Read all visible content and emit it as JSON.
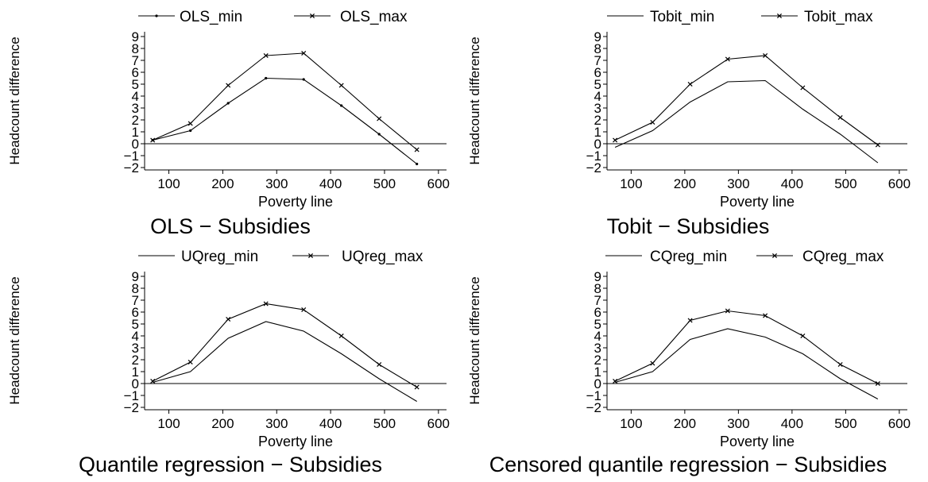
{
  "chart_data": [
    {
      "type": "line",
      "title": "OLS − Subsidies",
      "xlabel": "Poverty line",
      "ylabel": "Headcount difference",
      "x": [
        70,
        140,
        210,
        280,
        350,
        420,
        490,
        560
      ],
      "xticks": [
        "100",
        "200",
        "300",
        "400",
        "500",
        "600"
      ],
      "xtick_values": [
        100,
        200,
        300,
        400,
        500,
        600
      ],
      "yticks": [
        "−2",
        "−1",
        "0",
        "1",
        "2",
        "3",
        "4",
        "5",
        "6",
        "7",
        "8",
        "9"
      ],
      "ytick_values": [
        -2,
        -1,
        0,
        1,
        2,
        3,
        4,
        5,
        6,
        7,
        8,
        9
      ],
      "xlim": [
        55,
        615
      ],
      "ylim": [
        -2.2,
        9.4
      ],
      "reference_line_y": 0,
      "legend": "top",
      "series": [
        {
          "name": "OLS_min",
          "marker": "dot",
          "values": [
            0.3,
            1.1,
            3.4,
            5.5,
            5.4,
            3.2,
            0.8,
            -1.7
          ]
        },
        {
          "name": "OLS_max",
          "marker": "x",
          "values": [
            0.3,
            1.7,
            4.9,
            7.4,
            7.6,
            4.9,
            2.1,
            -0.5
          ]
        }
      ]
    },
    {
      "type": "line",
      "title": "Tobit − Subsidies",
      "xlabel": "Poverty line",
      "ylabel": "Headcount difference",
      "x": [
        70,
        140,
        210,
        280,
        350,
        420,
        490,
        560
      ],
      "xticks": [
        "100",
        "200",
        "300",
        "400",
        "500",
        "600"
      ],
      "xtick_values": [
        100,
        200,
        300,
        400,
        500,
        600
      ],
      "yticks": [
        "−2",
        "−1",
        "0",
        "1",
        "2",
        "3",
        "4",
        "5",
        "6",
        "7",
        "8",
        "9"
      ],
      "ytick_values": [
        -2,
        -1,
        0,
        1,
        2,
        3,
        4,
        5,
        6,
        7,
        8,
        9
      ],
      "xlim": [
        55,
        615
      ],
      "ylim": [
        -2.2,
        9.4
      ],
      "reference_line_y": 0,
      "legend": "top",
      "series": [
        {
          "name": "Tobit_min",
          "marker": "none",
          "values": [
            -0.3,
            1.1,
            3.5,
            5.2,
            5.3,
            2.9,
            0.8,
            -1.6
          ]
        },
        {
          "name": "Tobit_max",
          "marker": "x",
          "values": [
            0.3,
            1.8,
            5.0,
            7.1,
            7.4,
            4.7,
            2.2,
            -0.1
          ]
        }
      ]
    },
    {
      "type": "line",
      "title": "Quantile regression − Subsidies",
      "xlabel": "Poverty line",
      "ylabel": "Headcount difference",
      "x": [
        70,
        140,
        210,
        280,
        350,
        420,
        490,
        560
      ],
      "xticks": [
        "100",
        "200",
        "300",
        "400",
        "500",
        "600"
      ],
      "xtick_values": [
        100,
        200,
        300,
        400,
        500,
        600
      ],
      "yticks": [
        "−2",
        "−1",
        "0",
        "1",
        "2",
        "3",
        "4",
        "5",
        "6",
        "7",
        "8",
        "9"
      ],
      "ytick_values": [
        -2,
        -1,
        0,
        1,
        2,
        3,
        4,
        5,
        6,
        7,
        8,
        9
      ],
      "xlim": [
        55,
        615
      ],
      "ylim": [
        -2.2,
        9.4
      ],
      "reference_line_y": 0,
      "legend": "top",
      "series": [
        {
          "name": "UQreg_min",
          "marker": "none",
          "values": [
            0.1,
            1.0,
            3.8,
            5.2,
            4.4,
            2.5,
            0.4,
            -1.5
          ]
        },
        {
          "name": "UQreg_max",
          "marker": "x",
          "values": [
            0.2,
            1.8,
            5.4,
            6.7,
            6.2,
            4.0,
            1.6,
            -0.3
          ]
        }
      ]
    },
    {
      "type": "line",
      "title": "Censored quantile regression − Subsidies",
      "xlabel": "Poverty line",
      "ylabel": "Headcount difference",
      "x": [
        70,
        140,
        210,
        280,
        350,
        420,
        490,
        560
      ],
      "xticks": [
        "100",
        "200",
        "300",
        "400",
        "500",
        "600"
      ],
      "xtick_values": [
        100,
        200,
        300,
        400,
        500,
        600
      ],
      "yticks": [
        "−2",
        "−1",
        "0",
        "1",
        "2",
        "3",
        "4",
        "5",
        "6",
        "7",
        "8",
        "9"
      ],
      "ytick_values": [
        -2,
        -1,
        0,
        1,
        2,
        3,
        4,
        5,
        6,
        7,
        8,
        9
      ],
      "xlim": [
        55,
        615
      ],
      "ylim": [
        -2.2,
        9.4
      ],
      "reference_line_y": 0,
      "legend": "top",
      "series": [
        {
          "name": "CQreg_min",
          "marker": "none",
          "values": [
            0.1,
            1.0,
            3.7,
            4.6,
            3.9,
            2.5,
            0.4,
            -1.3
          ]
        },
        {
          "name": "CQreg_max",
          "marker": "x",
          "values": [
            0.2,
            1.7,
            5.3,
            6.1,
            5.7,
            4.0,
            1.6,
            0.0
          ]
        }
      ]
    }
  ]
}
